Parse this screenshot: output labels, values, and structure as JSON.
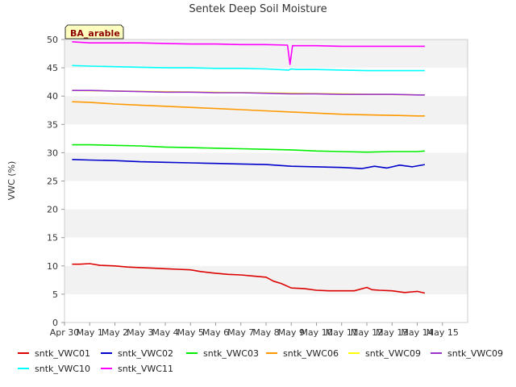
{
  "chart_data": {
    "type": "line",
    "title": "Sentek Deep Soil Moisture",
    "site_label": "BA_arable",
    "xlabel": "",
    "ylabel": "VWC (%)",
    "xlim": [
      0,
      16
    ],
    "ylim": [
      0,
      50
    ],
    "x_ticks": [
      0,
      1,
      2,
      3,
      4,
      5,
      6,
      7,
      8,
      9,
      10,
      11,
      12,
      13,
      14,
      15
    ],
    "x_tick_labels": [
      "Apr 30",
      "May 1",
      "May 2",
      "May 3",
      "May 4",
      "May 5",
      "May 6",
      "May 7",
      "May 8",
      "May 9",
      "May 10",
      "May 11",
      "May 12",
      "May 13",
      "May 14",
      "May 15"
    ],
    "y_ticks": [
      0,
      5,
      10,
      15,
      20,
      25,
      30,
      35,
      40,
      45,
      50
    ],
    "grid": "horizontal bands",
    "legend_position": "bottom",
    "series": [
      {
        "name": "sntk_VWC01",
        "color": "#dd0000",
        "x": [
          0.3,
          0.6,
          1.0,
          1.4,
          2.0,
          2.5,
          3.0,
          3.5,
          4.0,
          4.5,
          5.0,
          5.4,
          6.0,
          6.5,
          7.0,
          7.5,
          8.0,
          8.3,
          8.6,
          9.0,
          9.5,
          10.0,
          10.5,
          11.0,
          11.5,
          12.0,
          12.2,
          12.5,
          13.0,
          13.5,
          14.0,
          14.3
        ],
        "values": [
          10.3,
          10.3,
          10.4,
          10.1,
          10.0,
          9.8,
          9.7,
          9.6,
          9.5,
          9.4,
          9.3,
          9.0,
          8.7,
          8.5,
          8.4,
          8.2,
          8.0,
          7.3,
          6.9,
          6.1,
          6.0,
          5.7,
          5.6,
          5.6,
          5.6,
          6.2,
          5.8,
          5.7,
          5.6,
          5.3,
          5.5,
          5.2
        ]
      },
      {
        "name": "sntk_VWC02",
        "color": "#0000cc",
        "x": [
          0.3,
          1.0,
          2.0,
          3.0,
          4.0,
          5.0,
          6.0,
          7.0,
          8.0,
          9.0,
          10.0,
          11.0,
          11.8,
          12.3,
          12.8,
          13.3,
          13.8,
          14.3
        ],
        "values": [
          28.8,
          28.7,
          28.6,
          28.4,
          28.3,
          28.2,
          28.1,
          28.0,
          27.9,
          27.6,
          27.5,
          27.4,
          27.2,
          27.6,
          27.3,
          27.8,
          27.5,
          27.9
        ]
      },
      {
        "name": "sntk_VWC03",
        "color": "#00ee00",
        "x": [
          0.3,
          1.0,
          2.0,
          3.0,
          4.0,
          5.0,
          6.0,
          7.0,
          8.0,
          9.0,
          10.0,
          11.0,
          12.0,
          13.0,
          14.0,
          14.3
        ],
        "values": [
          31.4,
          31.4,
          31.3,
          31.2,
          31.0,
          30.9,
          30.8,
          30.7,
          30.6,
          30.5,
          30.3,
          30.2,
          30.1,
          30.2,
          30.2,
          30.3
        ]
      },
      {
        "name": "sntk_VWC06",
        "color": "#ff9900",
        "x": [
          0.3,
          1.0,
          2.0,
          3.0,
          4.0,
          5.0,
          6.0,
          7.0,
          8.0,
          9.0,
          10.0,
          11.0,
          12.0,
          13.0,
          14.0,
          14.3
        ],
        "values": [
          39.0,
          38.9,
          38.6,
          38.4,
          38.2,
          38.0,
          37.8,
          37.6,
          37.4,
          37.2,
          37.0,
          36.8,
          36.7,
          36.6,
          36.5,
          36.5
        ]
      },
      {
        "name": "sntk_VWC09",
        "color": "#ffff00",
        "x": [
          0.3,
          14.3
        ],
        "values": [
          41.0,
          40.2
        ]
      },
      {
        "name": "sntk_VWC09",
        "color": "#9933cc",
        "x": [
          0.3,
          1.0,
          2.0,
          3.0,
          4.0,
          5.0,
          6.0,
          7.0,
          8.0,
          9.0,
          10.0,
          11.0,
          12.0,
          13.0,
          14.0,
          14.3
        ],
        "values": [
          41.0,
          41.0,
          40.9,
          40.8,
          40.7,
          40.7,
          40.6,
          40.6,
          40.5,
          40.4,
          40.4,
          40.3,
          40.3,
          40.3,
          40.2,
          40.2
        ]
      },
      {
        "name": "sntk_VWC10",
        "color": "#00ffff",
        "x": [
          0.3,
          1.0,
          2.0,
          3.0,
          4.0,
          5.0,
          6.0,
          7.0,
          8.0,
          8.9,
          9.0,
          9.2,
          10.0,
          11.0,
          12.0,
          13.0,
          14.0,
          14.3
        ],
        "values": [
          45.4,
          45.3,
          45.2,
          45.1,
          45.0,
          45.0,
          44.9,
          44.9,
          44.8,
          44.6,
          44.8,
          44.7,
          44.7,
          44.6,
          44.5,
          44.5,
          44.5,
          44.5
        ]
      },
      {
        "name": "sntk_VWC11",
        "color": "#ff00ff",
        "x": [
          0.3,
          1.0,
          2.0,
          3.0,
          4.0,
          5.0,
          6.0,
          7.0,
          8.0,
          8.85,
          8.95,
          9.05,
          9.3,
          10.0,
          11.0,
          12.0,
          13.0,
          14.0,
          14.3
        ],
        "values": [
          49.6,
          49.4,
          49.4,
          49.4,
          49.3,
          49.2,
          49.2,
          49.1,
          49.1,
          49.0,
          45.6,
          48.9,
          48.9,
          48.9,
          48.8,
          48.8,
          48.8,
          48.8,
          48.8
        ]
      }
    ]
  }
}
